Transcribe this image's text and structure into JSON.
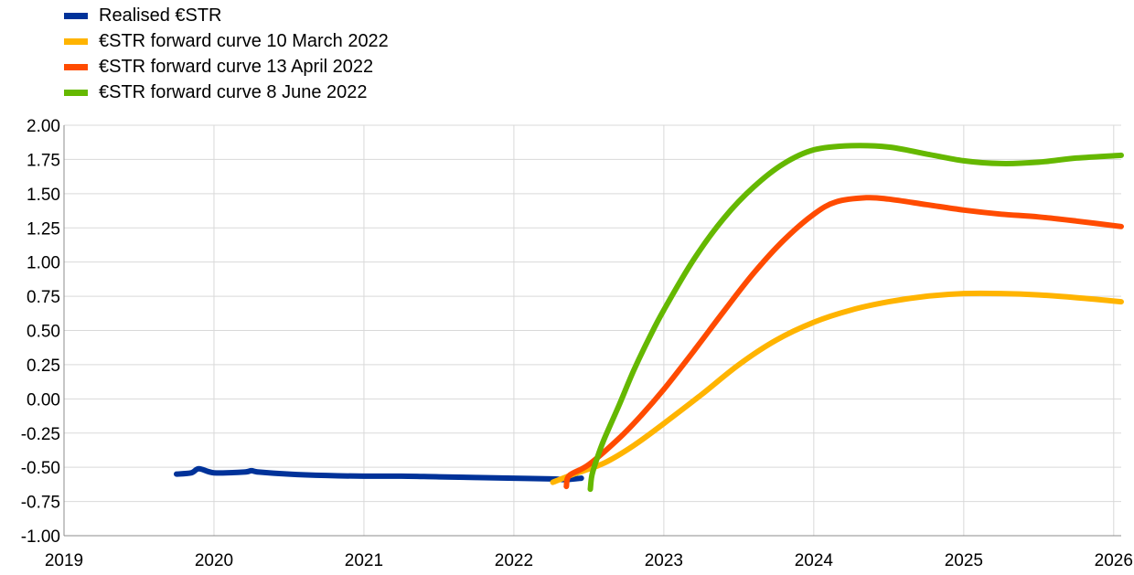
{
  "chart_data": {
    "type": "line",
    "title": "",
    "xlabel": "",
    "ylabel": "",
    "xlim": [
      2019,
      2026.05
    ],
    "ylim": [
      -1.0,
      2.0
    ],
    "x_ticks": [
      "2019",
      "2020",
      "2021",
      "2022",
      "2023",
      "2024",
      "2025",
      "2026"
    ],
    "y_ticks": [
      "2.00",
      "1.75",
      "1.50",
      "1.25",
      "1.00",
      "0.75",
      "0.50",
      "0.25",
      "0.00",
      "-0.25",
      "-0.50",
      "-0.75",
      "-1.00"
    ],
    "grid": true,
    "legend_position": "top-left",
    "series": [
      {
        "name": "Realised €STR",
        "color": "#003299",
        "x": [
          2019.75,
          2019.85,
          2019.9,
          2020.0,
          2020.2,
          2020.25,
          2020.3,
          2020.5,
          2020.75,
          2021.0,
          2021.25,
          2021.5,
          2021.75,
          2022.0,
          2022.25,
          2022.35,
          2022.45
        ],
        "y": [
          -0.55,
          -0.54,
          -0.51,
          -0.54,
          -0.535,
          -0.525,
          -0.535,
          -0.55,
          -0.56,
          -0.565,
          -0.565,
          -0.57,
          -0.575,
          -0.58,
          -0.585,
          -0.59,
          -0.58
        ]
      },
      {
        "name": "€STR forward curve 10 March 2022",
        "color": "#FFB400",
        "x": [
          2022.26,
          2022.4,
          2022.6,
          2022.8,
          2023.0,
          2023.25,
          2023.5,
          2023.75,
          2024.0,
          2024.25,
          2024.5,
          2024.75,
          2025.0,
          2025.25,
          2025.5,
          2025.75,
          2026.05
        ],
        "y": [
          -0.61,
          -0.55,
          -0.47,
          -0.34,
          -0.18,
          0.03,
          0.25,
          0.43,
          0.56,
          0.65,
          0.71,
          0.75,
          0.77,
          0.77,
          0.76,
          0.74,
          0.71
        ]
      },
      {
        "name": "€STR forward curve 13 April 2022",
        "color": "#FF4B00",
        "x": [
          2022.35,
          2022.37,
          2022.5,
          2022.7,
          2022.85,
          2023.0,
          2023.2,
          2023.4,
          2023.6,
          2023.8,
          2024.0,
          2024.15,
          2024.35,
          2024.5,
          2024.75,
          2025.0,
          2025.25,
          2025.5,
          2025.75,
          2026.05
        ],
        "y": [
          -0.64,
          -0.56,
          -0.48,
          -0.29,
          -0.12,
          0.07,
          0.35,
          0.64,
          0.92,
          1.16,
          1.35,
          1.44,
          1.47,
          1.46,
          1.42,
          1.38,
          1.35,
          1.33,
          1.3,
          1.26
        ]
      },
      {
        "name": "€STR forward curve 8 June 2022",
        "color": "#65B800",
        "x": [
          2022.51,
          2022.52,
          2022.55,
          2022.6,
          2022.7,
          2022.8,
          2022.9,
          2023.0,
          2023.2,
          2023.4,
          2023.6,
          2023.8,
          2024.0,
          2024.25,
          2024.5,
          2024.75,
          2025.0,
          2025.25,
          2025.5,
          2025.75,
          2026.05
        ],
        "y": [
          -0.66,
          -0.56,
          -0.45,
          -0.3,
          -0.05,
          0.21,
          0.44,
          0.65,
          1.02,
          1.32,
          1.55,
          1.72,
          1.82,
          1.85,
          1.84,
          1.79,
          1.74,
          1.72,
          1.73,
          1.76,
          1.78
        ]
      }
    ]
  }
}
